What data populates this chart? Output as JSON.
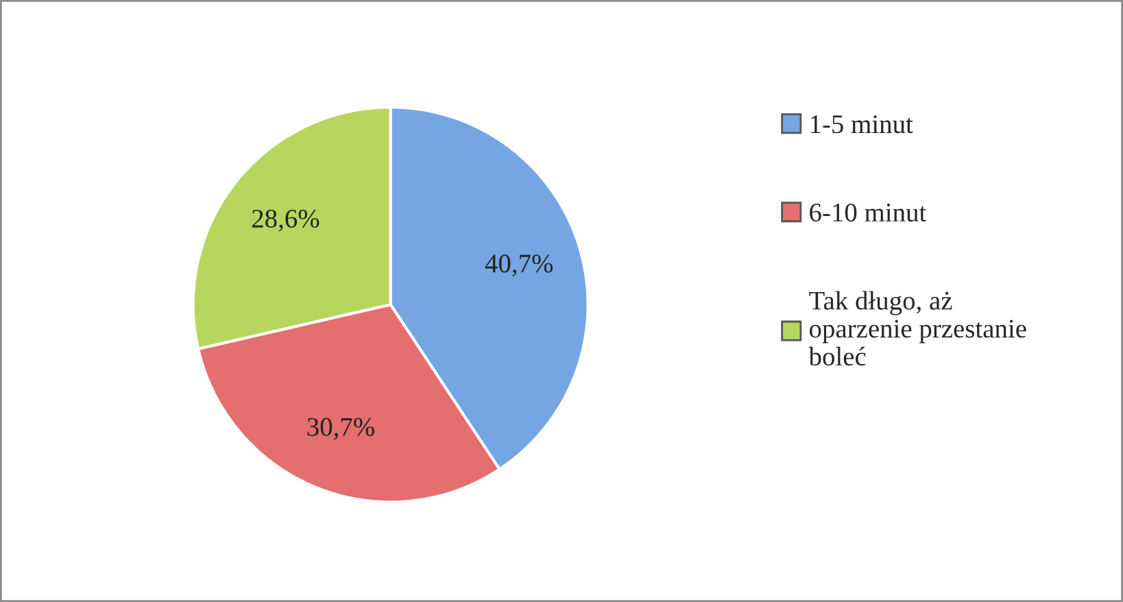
{
  "chart_data": {
    "type": "pie",
    "categories": [
      "1-5 minut",
      "6-10 minut",
      "Tak długo, aż\noparzenie przestanie\nboleć"
    ],
    "values": [
      40.7,
      30.7,
      28.6
    ],
    "colors": [
      "#76a5e3",
      "#e56e6e",
      "#b7d65e"
    ],
    "value_labels": [
      "40,7%",
      "30,7%",
      "28,6%"
    ],
    "legend": "right"
  }
}
